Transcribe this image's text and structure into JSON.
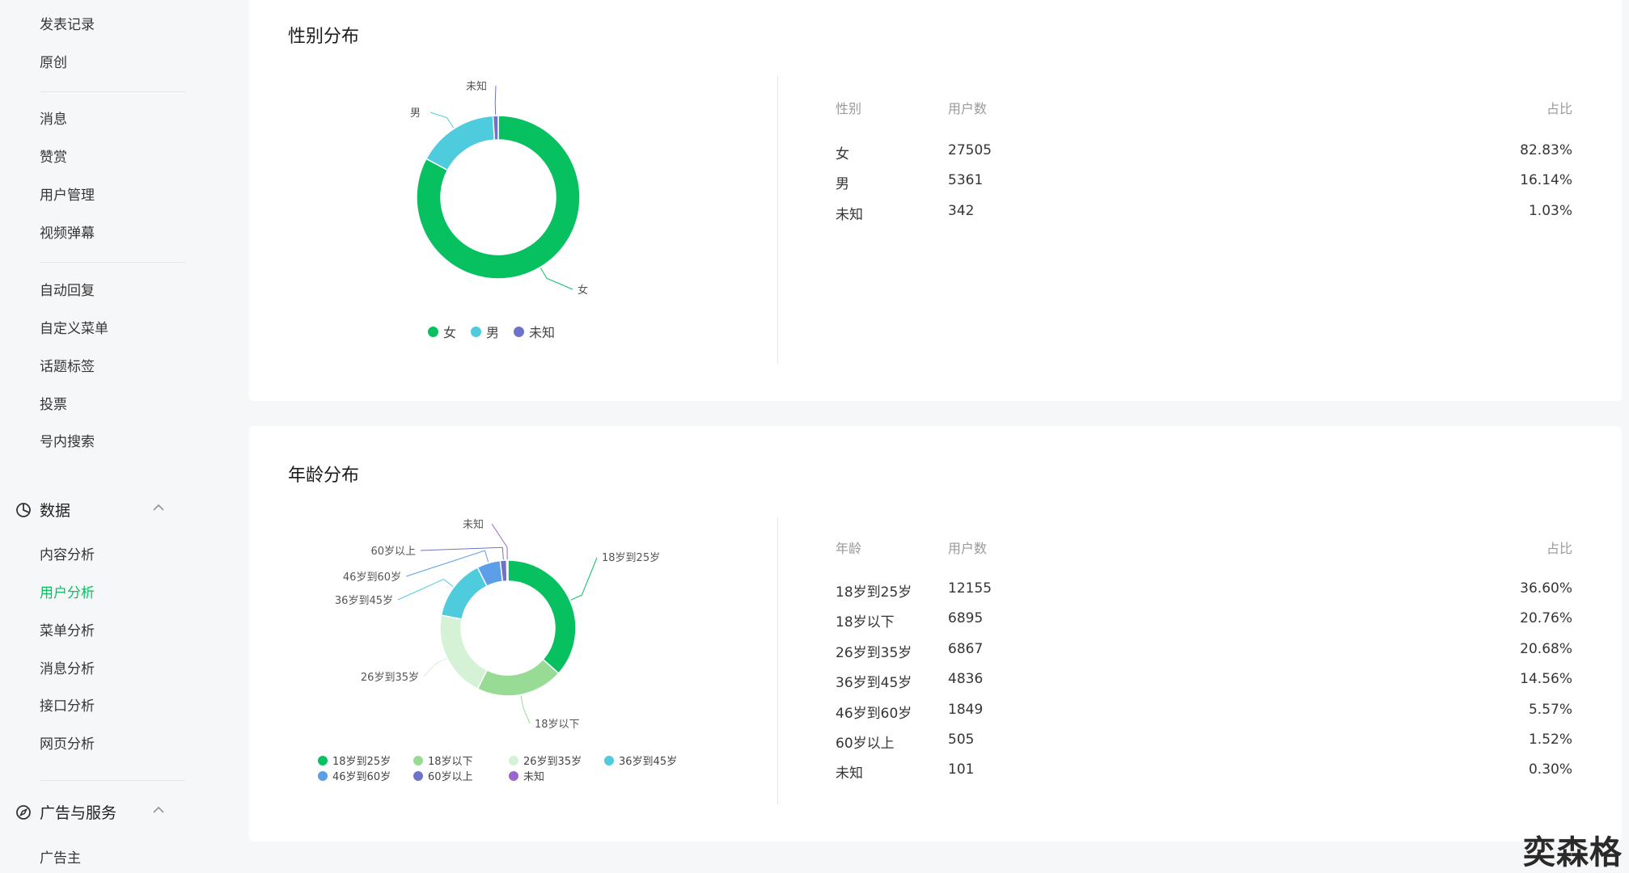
{
  "sidebar": {
    "items_top": [
      "发表记录",
      "原创"
    ],
    "items_group2": [
      "消息",
      "赞赏",
      "用户管理",
      "视频弹幕"
    ],
    "items_group3": [
      "自动回复",
      "自定义菜单",
      "话题标签",
      "投票",
      "号内搜索"
    ],
    "data_section": {
      "title": "数据",
      "items": [
        "内容分析",
        "用户分析",
        "菜单分析",
        "消息分析",
        "接口分析",
        "网页分析"
      ],
      "active": "用户分析"
    },
    "ads_section": {
      "title": "广告与服务",
      "items": [
        "广告主"
      ]
    }
  },
  "gender": {
    "title": "性别分布",
    "headers": {
      "c1": "性别",
      "c2": "用户数",
      "c3": "占比"
    },
    "rows": [
      {
        "label": "女",
        "count": "27505",
        "pct": "82.83%"
      },
      {
        "label": "男",
        "count": "5361",
        "pct": "16.14%"
      },
      {
        "label": "未知",
        "count": "342",
        "pct": "1.03%"
      }
    ],
    "legend": [
      "女",
      "男",
      "未知"
    ]
  },
  "age": {
    "title": "年龄分布",
    "headers": {
      "c1": "年龄",
      "c2": "用户数",
      "c3": "占比"
    },
    "rows": [
      {
        "label": "18岁到25岁",
        "count": "12155",
        "pct": "36.60%"
      },
      {
        "label": "18岁以下",
        "count": "6895",
        "pct": "20.76%"
      },
      {
        "label": "26岁到35岁",
        "count": "6867",
        "pct": "20.68%"
      },
      {
        "label": "36岁到45岁",
        "count": "4836",
        "pct": "14.56%"
      },
      {
        "label": "46岁到60岁",
        "count": "1849",
        "pct": "5.57%"
      },
      {
        "label": "60岁以上",
        "count": "505",
        "pct": "1.52%"
      },
      {
        "label": "未知",
        "count": "101",
        "pct": "0.30%"
      }
    ],
    "legend_row1": [
      "18岁到25岁",
      "18岁以下",
      "26岁到35岁",
      "36岁到45岁"
    ],
    "legend_row2": [
      "46岁到60岁",
      "60岁以上",
      "未知"
    ]
  },
  "chart_data": [
    {
      "type": "pie",
      "categories": [
        "女",
        "男",
        "未知"
      ],
      "values": [
        27505,
        5361,
        342
      ],
      "colors": [
        "#07c160",
        "#4ecbdd",
        "#6e73c9"
      ],
      "title": "性别分布",
      "legend_position": "bottom"
    },
    {
      "type": "pie",
      "categories": [
        "18岁到25岁",
        "18岁以下",
        "26岁到35岁",
        "36岁到45岁",
        "46岁到60岁",
        "60岁以上",
        "未知"
      ],
      "values": [
        12155,
        6895,
        6867,
        4836,
        1849,
        505,
        101
      ],
      "colors": [
        "#07c160",
        "#98db95",
        "#d5f1d6",
        "#4ecbdd",
        "#5c9fe8",
        "#6e73c9",
        "#9a67cf"
      ],
      "title": "年龄分布",
      "legend_position": "bottom"
    }
  ],
  "colors": {
    "accent": "#07c160",
    "sidebar_bg": "#f6f7f8",
    "card_bg": "#ffffff"
  },
  "icons": {
    "data_section": "pie-chart-icon",
    "ads_section": "compass-icon",
    "collapse": "chevron-up-icon"
  },
  "watermark": "奕森格"
}
